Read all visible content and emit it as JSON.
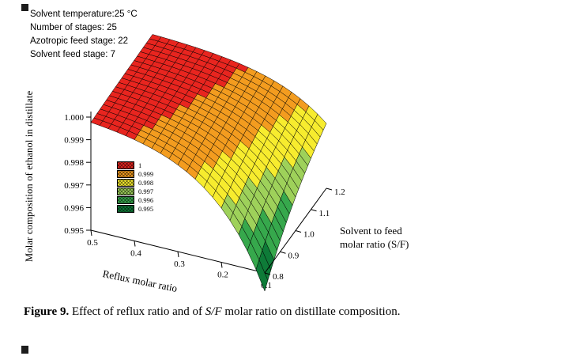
{
  "annotations": {
    "lines": [
      "Solvent temperature:25 °C",
      "Number of stages: 25",
      "Azotropic feed stage: 22",
      "Solvent feed stage: 7"
    ]
  },
  "caption": {
    "label": "Figure 9.",
    "text_before": " Effect of reflux ratio and of ",
    "italic": "S/F",
    "text_after": " molar ratio on distillate composition."
  },
  "chart_data": {
    "type": "surface3d",
    "title": "",
    "x_axis": {
      "label": "Reflux molar ratio",
      "ticks": [
        "0.5",
        "0.4",
        "0.3",
        "0.2",
        "0.1"
      ],
      "min": 0.1,
      "max": 0.5
    },
    "y_axis": {
      "label": "Solvent to feed molar ratio (S/F)",
      "label_lines": [
        "Solvent to feed",
        "molar ratio (S/F)"
      ],
      "ticks": [
        "0.8",
        "0.9",
        "1.0",
        "1.1",
        "1.2"
      ],
      "min": 0.8,
      "max": 1.2
    },
    "z_axis": {
      "label": "Molar composition of ethanol in distillate",
      "ticks": [
        "1.000",
        "0.999",
        "0.998",
        "0.997",
        "0.996",
        "0.995"
      ],
      "min": 0.995,
      "max": 1.0
    },
    "legend": {
      "position": "middle-left-inside-plot",
      "entries": [
        "1",
        "0.999",
        "0.998",
        "0.997",
        "0.996",
        "0.995"
      ],
      "colors": [
        "#e8251f",
        "#f39c1f",
        "#f7ec2e",
        "#9ed15a",
        "#36a84c",
        "#0e7b38"
      ]
    },
    "surface": {
      "grid_note": "rows = reflux_values, cols = sf_values; values = ethanol molar fraction in distillate",
      "reflux_values": [
        0.1,
        0.2,
        0.3,
        0.4,
        0.5
      ],
      "sf_values": [
        0.8,
        0.9,
        1.0,
        1.1,
        1.2
      ],
      "ethanol_molar_fraction_grid": [
        [
          0.9942,
          0.995483,
          0.996482,
          0.99726,
          0.997866
        ],
        [
          0.997394,
          0.99797,
          0.998419,
          0.998769,
          0.999041
        ],
        [
          0.998829,
          0.999088,
          0.99929,
          0.999447,
          0.999569
        ],
        [
          0.999474,
          0.99959,
          0.999681,
          0.999751,
          0.999806
        ],
        [
          0.999764,
          0.999816,
          0.999857,
          0.999888,
          0.999913
        ]
      ]
    }
  }
}
